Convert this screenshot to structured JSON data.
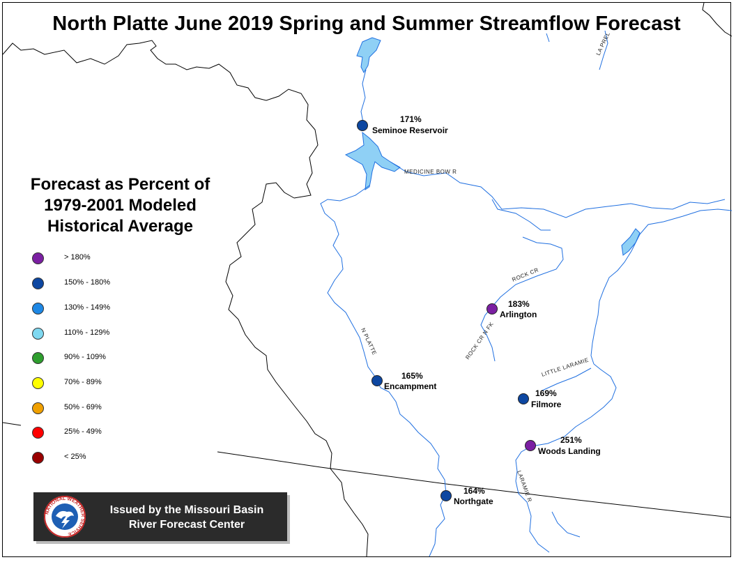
{
  "title": "North Platte June 2019 Spring and Summer Streamflow Forecast",
  "legend": {
    "title_lines": [
      "Forecast as Percent of",
      "1979-2001 Modeled",
      "Historical Average"
    ],
    "items": [
      {
        "label": "> 180%",
        "color": "#7b1fa2"
      },
      {
        "label": "150% - 180%",
        "color": "#0d47a1"
      },
      {
        "label": "130% - 149%",
        "color": "#1e88e5"
      },
      {
        "label": "110% - 129%",
        "color": "#7fd8f0"
      },
      {
        "label": "90% - 109%",
        "color": "#2e9e2e"
      },
      {
        "label": "70% - 89%",
        "color": "#ffff00"
      },
      {
        "label": "50% - 69%",
        "color": "#f0a000"
      },
      {
        "label": "25% - 49%",
        "color": "#ff0000"
      },
      {
        "label": "< 25%",
        "color": "#990000"
      }
    ]
  },
  "stations": [
    {
      "name": "Seminoe Reservoir",
      "percent": "171%",
      "color": "#0d47a1"
    },
    {
      "name": "Arlington",
      "percent": "183%",
      "color": "#7b1fa2"
    },
    {
      "name": "Encampment",
      "percent": "165%",
      "color": "#0d47a1"
    },
    {
      "name": "Filmore",
      "percent": "169%",
      "color": "#0d47a1"
    },
    {
      "name": "Woods Landing",
      "percent": "251%",
      "color": "#7b1fa2"
    },
    {
      "name": "Northgate",
      "percent": "164%",
      "color": "#0d47a1"
    }
  ],
  "rivers": {
    "medicine_bow": "MEDICINE BOW R",
    "rock_cr": "ROCK CR",
    "rock_cr_nfk": "ROCK CR N FK",
    "n_platte": "N PLATTE",
    "little_laramie": "LITTLE LARAMIE",
    "laramie": "LARAMIE R",
    "la_prele": "LA PREL"
  },
  "banner": {
    "line1": "Issued by the Missouri Basin",
    "line2": "River Forecast Center",
    "logo_text": "NATIONAL WEATHER SERVICE"
  },
  "colors": {
    "river": "#1f6fe0",
    "reservoir": "#8fd0f5",
    "boundary": "#000000"
  }
}
